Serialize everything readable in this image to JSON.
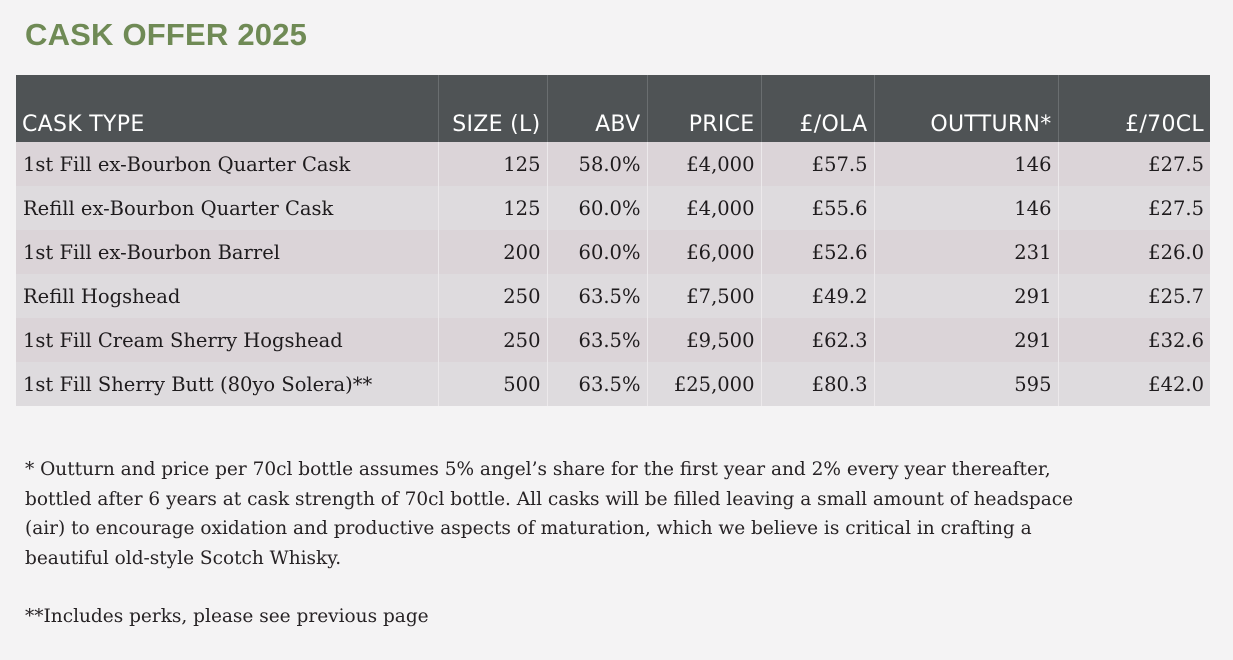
{
  "title": "CASK OFFER 2025",
  "table": {
    "headers": [
      "CASK TYPE",
      "SIZE (L)",
      "ABV",
      "PRICE",
      "£/OLA",
      "OUTTURN*",
      "£/70CL"
    ],
    "rows": [
      [
        "1st Fill ex-Bourbon Quarter Cask",
        "125",
        "58.0%",
        "£4,000",
        "£57.5",
        "146",
        "£27.5"
      ],
      [
        "Refill ex-Bourbon Quarter Cask",
        "125",
        "60.0%",
        "£4,000",
        "£55.6",
        "146",
        "£27.5"
      ],
      [
        "1st Fill ex-Bourbon Barrel",
        "200",
        "60.0%",
        "£6,000",
        "£52.6",
        "231",
        "£26.0"
      ],
      [
        "Refill Hogshead",
        "250",
        "63.5%",
        "£7,500",
        "£49.2",
        "291",
        "£25.7"
      ],
      [
        "1st Fill Cream Sherry Hogshead",
        "250",
        "63.5%",
        "£9,500",
        "£62.3",
        "291",
        "£32.6"
      ],
      [
        "1st Fill Sherry Butt (80yo Solera)**",
        "500",
        "63.5%",
        "£25,000",
        "£80.3",
        "595",
        "£42.0"
      ]
    ]
  },
  "notes": {
    "outturn": "* Outturn and price per 70cl bottle assumes 5% angel’s share for the first year and 2% every year thereafter, bottled after 6 years at cask strength of 70cl bottle. All casks will be filled leaving a small amount of headspace (air) to encourage oxidation and productive aspects of maturation, which we believe is critical in crafting a beautiful old-style Scotch Whisky.",
    "perks": "**Includes perks, please see previous page"
  },
  "colors": {
    "title": "#6f8a55",
    "header_bg": "#4f5355",
    "row_odd": "#dbd4d8",
    "row_even": "#dedbde",
    "page_bg": "#f4f3f4"
  }
}
